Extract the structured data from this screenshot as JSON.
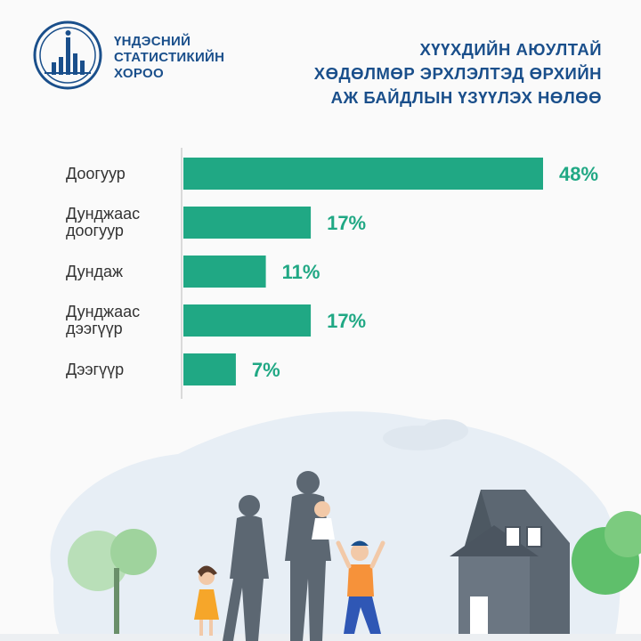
{
  "header": {
    "org_name_lines": [
      "ҮНДЭСНИЙ",
      "СТАТИСТИКИЙН",
      "ХОРОО"
    ],
    "title_lines": [
      "ХҮҮХДИЙН АЮУЛТАЙ",
      "ХӨДӨЛМӨР ЭРХЛЭЛТЭД ӨРХИЙН",
      "АЖ БАЙДЛЫН ҮЗҮҮЛЭХ НӨЛӨӨ"
    ]
  },
  "colors": {
    "bar": "#20a884",
    "label_value": "#20a884",
    "title": "#1a4f8b",
    "category_text": "#333333"
  },
  "icons": [
    "statistics-emblem-icon",
    "family-illustration-icon",
    "house-icon",
    "tree-icon",
    "cloud-icon"
  ],
  "chart_data": {
    "type": "bar",
    "orientation": "horizontal",
    "categories": [
      [
        "Доогуур"
      ],
      [
        "Дунджаас",
        "доогуур"
      ],
      [
        "Дундаж"
      ],
      [
        "Дунджаас",
        "дээгүүр"
      ],
      [
        "Дээгүүр"
      ]
    ],
    "values": [
      48,
      17,
      11,
      17,
      7
    ],
    "value_labels": [
      "48%",
      "17%",
      "11%",
      "17%",
      "7%"
    ],
    "unit": "%",
    "xlim": [
      0,
      48
    ],
    "grid": false,
    "legend": "none"
  }
}
